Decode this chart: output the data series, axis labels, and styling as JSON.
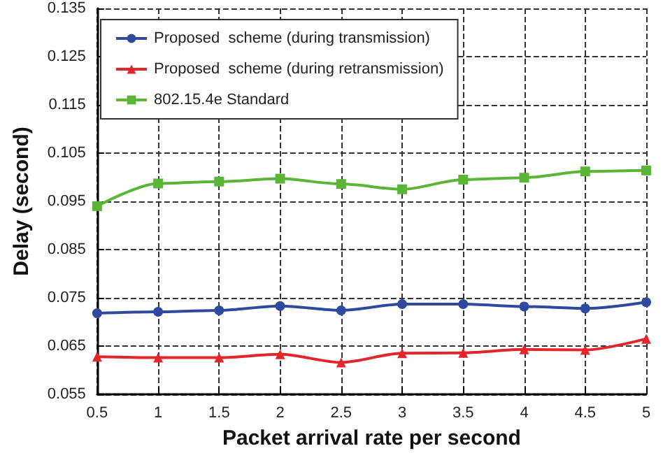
{
  "chart_data": {
    "type": "line",
    "xlabel": "Packet arrival rate per second",
    "ylabel": "Delay (second)",
    "x": [
      0.5,
      1,
      1.5,
      2,
      2.5,
      3,
      3.5,
      4,
      4.5,
      5
    ],
    "series": [
      {
        "name": "Proposed  scheme (during transmission)",
        "color": "#2e4a9e",
        "marker": "circle",
        "values": [
          0.0718,
          0.0721,
          0.0724,
          0.0733,
          0.0724,
          0.0737,
          0.0737,
          0.0732,
          0.0728,
          0.0741
        ]
      },
      {
        "name": "Proposed  scheme (during retransmission)",
        "color": "#e3262b",
        "marker": "triangle",
        "values": [
          0.0628,
          0.0626,
          0.0626,
          0.0633,
          0.0616,
          0.0635,
          0.0636,
          0.0643,
          0.0642,
          0.0665
        ]
      },
      {
        "name": "802.15.4e Standard",
        "color": "#5bb537",
        "marker": "square",
        "values": [
          0.094,
          0.0987,
          0.0991,
          0.0997,
          0.0986,
          0.0975,
          0.0995,
          0.0999,
          0.1012,
          0.1014
        ]
      }
    ],
    "xlim": [
      0.5,
      5
    ],
    "xticks": [
      0.5,
      1,
      1.5,
      2,
      2.5,
      3,
      3.5,
      4,
      4.5,
      5
    ],
    "ylim": [
      0.055,
      0.135
    ],
    "yticks": [
      0.055,
      0.065,
      0.075,
      0.085,
      0.095,
      0.105,
      0.115,
      0.125,
      0.135
    ],
    "grid": true,
    "legend": "top left"
  }
}
